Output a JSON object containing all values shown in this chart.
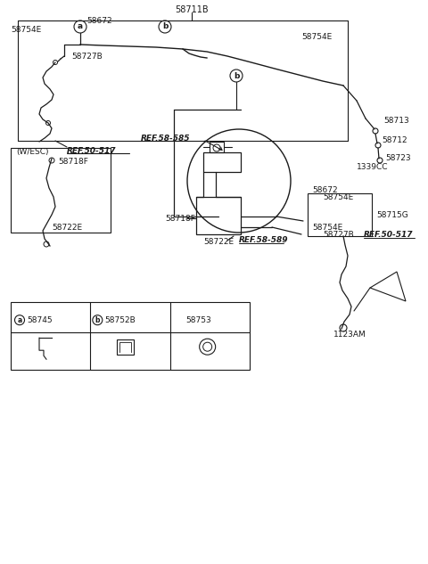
{
  "background_color": "#ffffff",
  "line_color": "#1a1a1a",
  "text_color": "#1a1a1a",
  "fig_width": 4.8,
  "fig_height": 6.33,
  "labels": {
    "top_center": "58711B",
    "label_58672_top": "58672",
    "label_58754E_left": "58754E",
    "label_58727B": "58727B",
    "ref_50_517_left": "REF.50-517",
    "label_58754E_topright": "58754E",
    "ref_58_585": "REF.58-585",
    "label_58713": "58713",
    "label_58712": "58712",
    "label_58723": "58723",
    "label_1339CC": "1339CC",
    "label_58718F_main": "58718F",
    "label_58722E_main": "58722E",
    "ref_58_589": "REF.58-589",
    "label_58672_right": "58672",
    "label_58754E_right1": "58754E",
    "label_58754E_right2": "58754E",
    "label_58715G": "58715G",
    "label_58727B_right": "58727B",
    "ref_50_517_right": "REF.50-517",
    "label_1123AM": "1123AM",
    "wesc_label": "(W/ESC)",
    "label_58718F_inset": "58718F",
    "label_58722E_inset": "58722E",
    "bottom_a": "a",
    "bottom_58745": "58745",
    "bottom_b": "b",
    "bottom_58752B": "58752B",
    "bottom_58753": "58753"
  }
}
